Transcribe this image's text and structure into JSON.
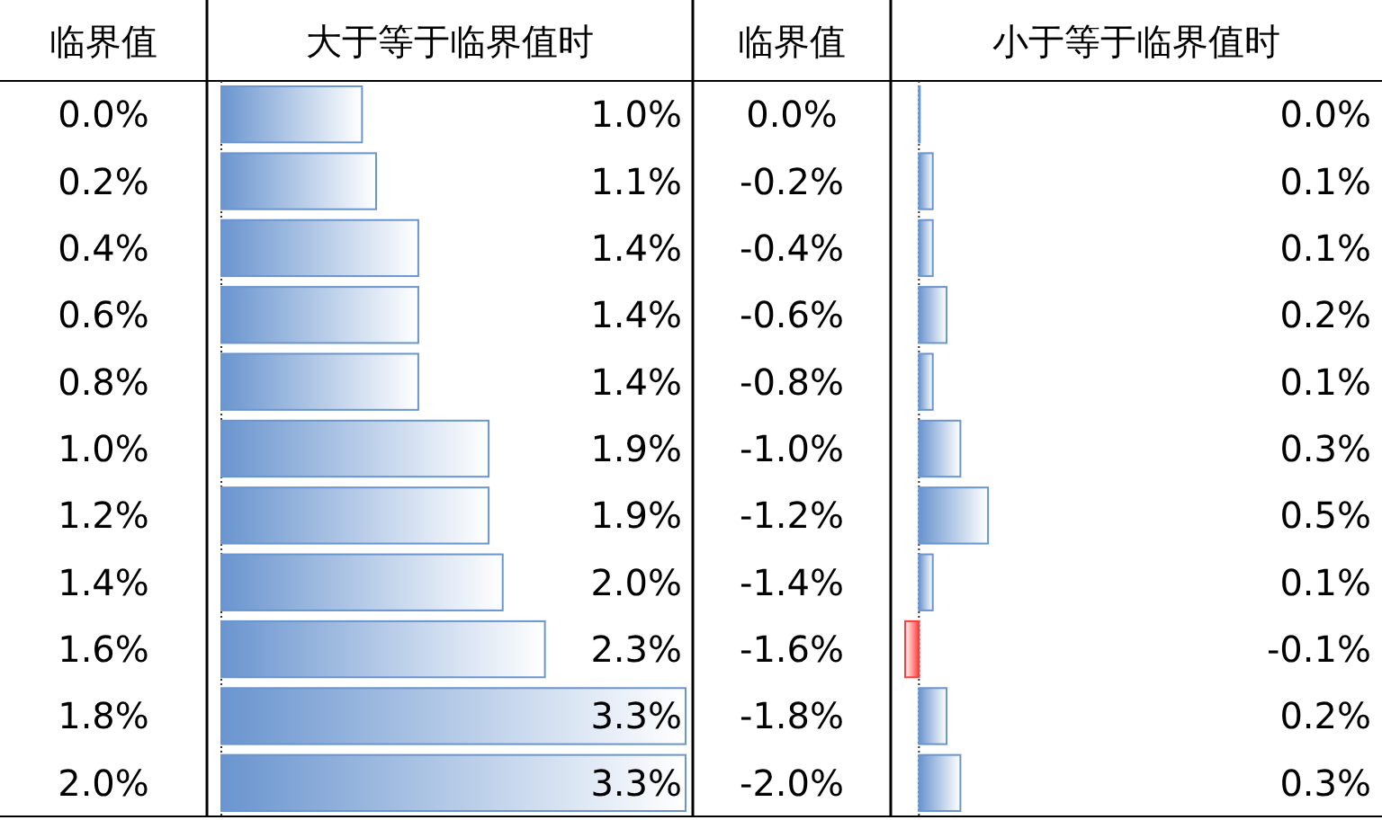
{
  "chart_data": [
    {
      "type": "bar",
      "orientation": "horizontal",
      "ylabel": "临界值",
      "title": "大于等于临界值时",
      "categories": [
        "0.0%",
        "0.2%",
        "0.4%",
        "0.6%",
        "0.8%",
        "1.0%",
        "1.2%",
        "1.4%",
        "1.6%",
        "1.8%",
        "2.0%"
      ],
      "values": [
        1.0,
        1.1,
        1.4,
        1.4,
        1.4,
        1.9,
        1.9,
        2.0,
        2.3,
        3.3,
        3.3
      ],
      "value_labels": [
        "1.0%",
        "1.1%",
        "1.4%",
        "1.4%",
        "1.4%",
        "1.9%",
        "1.9%",
        "2.0%",
        "2.3%",
        "3.3%",
        "3.3%"
      ],
      "color": "#6a95cf",
      "tick_labels": "y",
      "ref_lines": [
        {
          "axis": "x",
          "value": 0,
          "color": "#333333",
          "line_style": "dotted"
        }
      ]
    },
    {
      "type": "bar",
      "orientation": "horizontal",
      "ylabel": "临界值",
      "title": "小于等于临界值时",
      "categories": [
        "0.0%",
        "-0.2%",
        "-0.4%",
        "-0.6%",
        "-0.8%",
        "-1.0%",
        "-1.2%",
        "-1.4%",
        "-1.6%",
        "-1.8%",
        "-2.0%"
      ],
      "values": [
        0.0,
        0.1,
        0.1,
        0.2,
        0.1,
        0.3,
        0.5,
        0.1,
        -0.1,
        0.2,
        0.3
      ],
      "value_labels": [
        "0.0%",
        "0.1%",
        "0.1%",
        "0.2%",
        "0.1%",
        "0.3%",
        "0.5%",
        "0.1%",
        "-0.1%",
        "0.2%",
        "0.3%"
      ],
      "colors": [
        "#6a95cf",
        "#6a95cf",
        "#6a95cf",
        "#6a95cf",
        "#6a95cf",
        "#6a95cf",
        "#6a95cf",
        "#6a95cf",
        "#ff3b3b",
        "#6a95cf",
        "#6a95cf"
      ],
      "tick_labels": "y",
      "ref_lines": [
        {
          "axis": "x",
          "value": 0,
          "color": "#333333",
          "line_style": "dotted"
        }
      ]
    }
  ]
}
